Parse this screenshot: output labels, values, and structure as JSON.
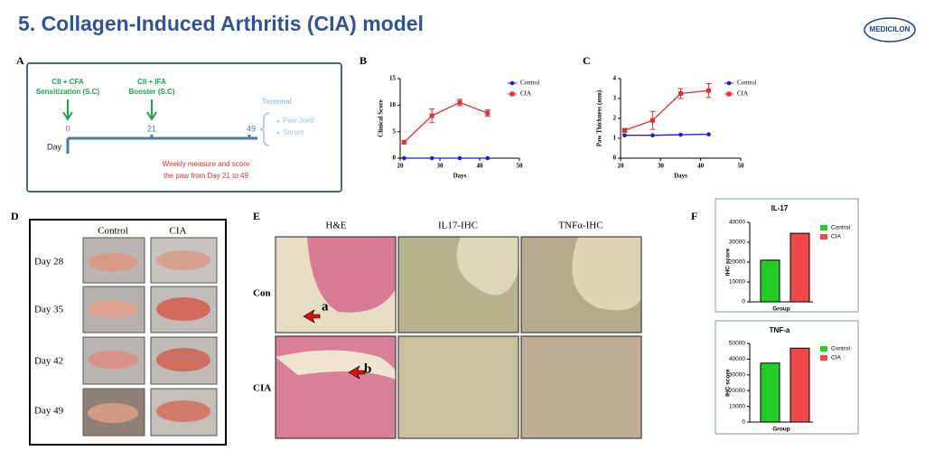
{
  "title": "5. Collagen-Induced Arthritis (CIA) model",
  "logo": "MEDICILON",
  "panel_a": {
    "label": "A",
    "steps": [
      {
        "line1": "CII + CFA",
        "line2": "Sensitization (S.C)",
        "day": "0"
      },
      {
        "line1": "CII + IFA",
        "line2": "Booster (S.C)",
        "day": "21"
      }
    ],
    "end_day": "49",
    "axis_label": "Day",
    "terminal": {
      "title": "Terminal",
      "items": [
        "Paw Joint",
        "Serum"
      ]
    },
    "note": [
      "Weekly measure and score",
      "the paw from Day 21 to 49"
    ]
  },
  "panel_d": {
    "label": "D",
    "columns": [
      "Control",
      "CIA"
    ],
    "rows": [
      "Day 28",
      "Day 35",
      "Day 42",
      "Day 49"
    ]
  },
  "panel_e": {
    "label": "E",
    "columns": [
      "H&E",
      "IL17-IHC",
      "TNFα-IHC"
    ],
    "rows": [
      "Con",
      "CIA"
    ],
    "arrows": [
      "a",
      "b"
    ]
  },
  "panel_f": {
    "label": "F"
  },
  "chart_data": [
    {
      "label": "B",
      "type": "line",
      "x_label": "Days",
      "y_label": "Clinical Score",
      "x": [
        21,
        28,
        35,
        42
      ],
      "xlim": [
        20,
        50
      ],
      "xticks": [
        20,
        30,
        40,
        50
      ],
      "ylim": [
        0,
        15
      ],
      "yticks": [
        0,
        5,
        10,
        15
      ],
      "series": [
        {
          "name": "Control",
          "color": "#1f1fd6",
          "marker": "circle",
          "values": [
            0,
            0,
            0,
            0
          ]
        },
        {
          "name": "CIA",
          "color": "#e03030",
          "marker": "square",
          "values": [
            3,
            8,
            10.5,
            8.5
          ],
          "errors": [
            0.3,
            1.3,
            0.6,
            0.6
          ]
        }
      ]
    },
    {
      "label": "C",
      "type": "line",
      "x_label": "Days",
      "y_label": "Paw Thickness (mm)",
      "x": [
        21,
        28,
        35,
        42
      ],
      "xlim": [
        20,
        50
      ],
      "xticks": [
        20,
        30,
        40,
        50
      ],
      "ylim": [
        0,
        4
      ],
      "yticks": [
        0,
        1,
        2,
        3,
        4
      ],
      "series": [
        {
          "name": "Control",
          "color": "#1f1fd6",
          "marker": "circle",
          "values": [
            1.15,
            1.15,
            1.18,
            1.2
          ]
        },
        {
          "name": "CIA",
          "color": "#e03030",
          "marker": "square",
          "values": [
            1.4,
            1.9,
            3.25,
            3.4
          ],
          "errors": [
            0.1,
            0.45,
            0.25,
            0.35
          ]
        }
      ]
    },
    {
      "title": "IL-17",
      "type": "bar",
      "x_label": "Group",
      "y_label": "IHC score",
      "ylim": [
        0,
        40000
      ],
      "yticks": [
        0,
        10000,
        20000,
        30000,
        40000
      ],
      "series": [
        {
          "name": "Control",
          "color": "#22cc22",
          "values": [
            21000
          ]
        },
        {
          "name": "CIA",
          "color": "#f04848",
          "values": [
            34500
          ]
        }
      ]
    },
    {
      "title": "TNF-a",
      "type": "bar",
      "x_label": "Group",
      "y_label": "IHC score",
      "ylim": [
        0,
        50000
      ],
      "yticks": [
        0,
        10000,
        20000,
        30000,
        40000,
        50000
      ],
      "series": [
        {
          "name": "Control",
          "color": "#22cc22",
          "values": [
            37500
          ]
        },
        {
          "name": "CIA",
          "color": "#f04848",
          "values": [
            47000
          ]
        }
      ]
    }
  ]
}
